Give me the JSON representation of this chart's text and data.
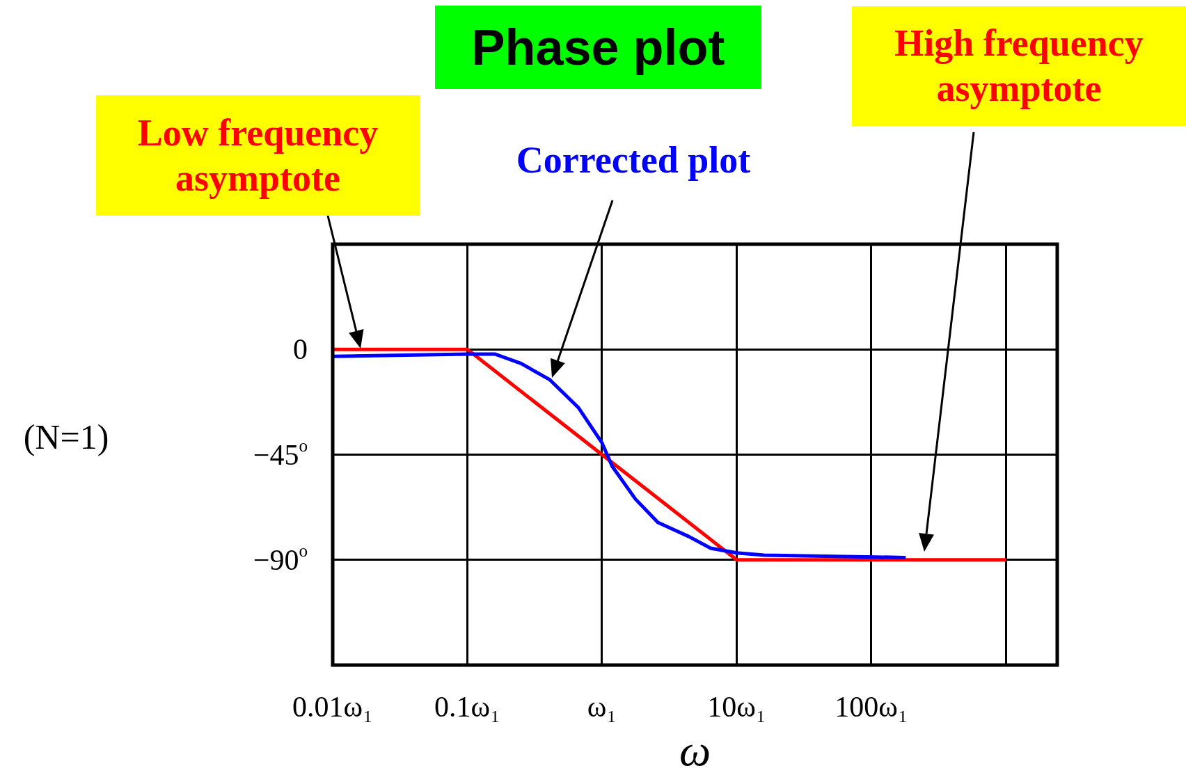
{
  "chart_data": {
    "type": "line",
    "title": "Phase plot",
    "xlabel": "ω",
    "log": "x",
    "xlim": [
      0.01,
      2400
    ],
    "ylim": [
      -135,
      45
    ],
    "xticks": [
      {
        "value": 0.01,
        "label": "0.01ω₁"
      },
      {
        "value": 0.1,
        "label": "0.1ω₁"
      },
      {
        "value": 1,
        "label": "ω₁"
      },
      {
        "value": 10,
        "label": "10ω₁"
      },
      {
        "value": 100,
        "label": "100ω₁"
      },
      {
        "value": 1000,
        "label": null
      }
    ],
    "yticks": [
      {
        "value": 0,
        "label": "0"
      },
      {
        "value": -45,
        "label": "−45$^{o}$"
      },
      {
        "value": -90,
        "label": "−90$^{o}$"
      }
    ],
    "grid": true,
    "legend": false,
    "marker": "none",
    "line_style": "solid",
    "series": [
      {
        "color": "#0000ff",
        "x": [
          0.01,
          0.1,
          0.16,
          0.25,
          0.41,
          0.67,
          1,
          1.19,
          1.77,
          2.6,
          4.4,
          6.4,
          10,
          16,
          180
        ],
        "values": [
          -3,
          -2,
          -2,
          -6,
          -13,
          -25,
          -40,
          -50,
          -64,
          -74,
          -80,
          -85,
          -87,
          -88,
          -89
        ]
      },
      {
        "color": "#ff0000",
        "x": [
          0.01,
          0.1,
          10,
          1000
        ],
        "values": [
          0,
          0,
          -90,
          -90
        ]
      }
    ],
    "annotations": [
      "Low frequency asymptote",
      "Corrected plot",
      "High frequency asymptote",
      "(N=1)"
    ]
  }
}
